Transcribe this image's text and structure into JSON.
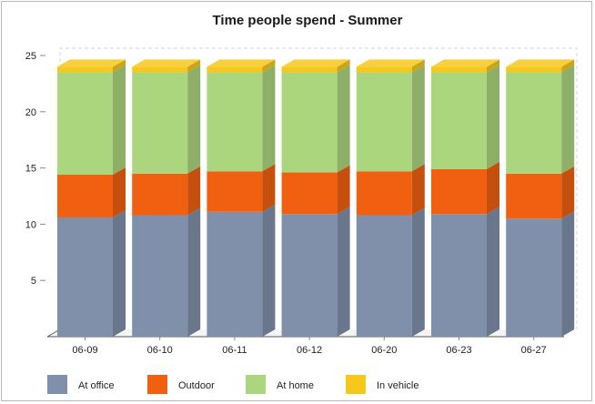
{
  "chart_data": {
    "type": "bar",
    "stacked": true,
    "style": "3d",
    "title": "Time people spend - Summer",
    "xlabel": "",
    "ylabel": "",
    "ylim": [
      0,
      25
    ],
    "yticks": [
      5,
      10,
      15,
      20,
      25
    ],
    "grid": false,
    "legend_position": "bottom-left",
    "categories": [
      "06-09",
      "06-10",
      "06-11",
      "06-12",
      "06-20",
      "06-23",
      "06-27"
    ],
    "series": [
      {
        "name": "At office",
        "color": "#8090aa",
        "values": [
          10.6,
          10.8,
          11.1,
          10.9,
          10.8,
          10.9,
          10.5
        ]
      },
      {
        "name": "Outdoor",
        "color": "#f06010",
        "values": [
          3.8,
          3.7,
          3.6,
          3.7,
          3.9,
          4.0,
          4.0
        ]
      },
      {
        "name": "At home",
        "color": "#acd67e",
        "values": [
          9.1,
          9.0,
          8.8,
          8.9,
          8.8,
          8.6,
          9.0
        ]
      },
      {
        "name": "In vehicle",
        "color": "#f7c81c",
        "values": [
          0.5,
          0.5,
          0.5,
          0.5,
          0.5,
          0.5,
          0.5
        ]
      }
    ]
  }
}
